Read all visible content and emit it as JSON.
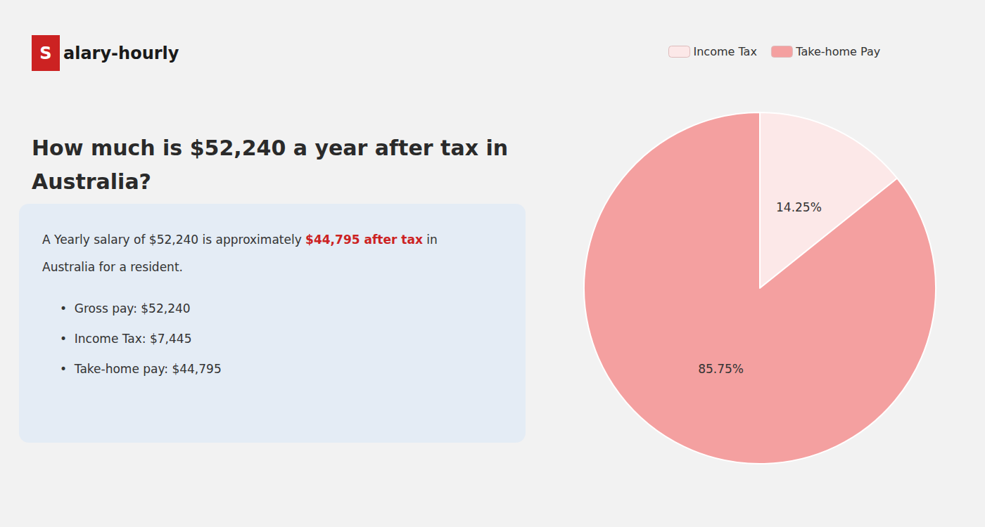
{
  "chart_data": {
    "type": "pie",
    "title": "How much is $52,240 a year after tax in\nAustralia?",
    "categories": [
      "Income Tax",
      "Take-home Pay"
    ],
    "values": [
      14.25,
      85.75
    ],
    "value_labels": [
      "14.25%",
      "85.75%"
    ],
    "colors": [
      "#fce8e8",
      "#f4a0a0"
    ],
    "data_labels": true,
    "legend": "top",
    "annotations": [
      {
        "text": "S",
        "color": "#cc2222"
      },
      {
        "text": "alary-hourly"
      },
      {
        "text": "A Yearly salary of $52,240 is approximately "
      },
      {
        "text": "$44,795 after tax",
        "color": "#cc2222"
      },
      {
        "text": " in"
      },
      {
        "text": "Australia for a resident."
      },
      {
        "text": "•  Gross pay: $52,240"
      },
      {
        "text": "•  Income Tax: $7,445"
      },
      {
        "text": "•  Take-home pay: $44,795"
      }
    ]
  }
}
